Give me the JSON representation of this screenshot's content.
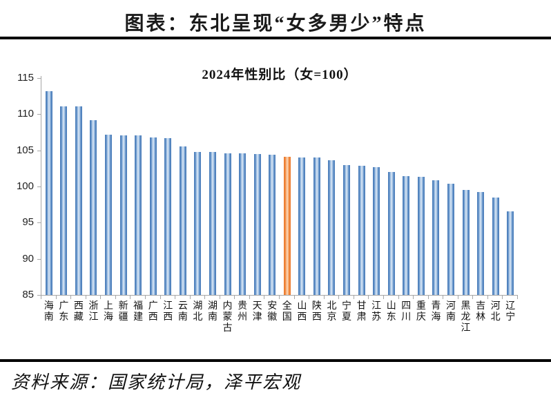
{
  "page": {
    "title": "图表：东北呈现“女多男少”特点",
    "source": "资料来源：国家统计局，泽平宏观"
  },
  "chart_data": {
    "type": "bar",
    "title": "2024年性别比（女=100）",
    "categories": [
      "海南",
      "广东",
      "西藏",
      "浙江",
      "上海",
      "新疆",
      "福建",
      "广西",
      "江西",
      "云南",
      "湖北",
      "湖南",
      "内蒙古",
      "贵州",
      "天津",
      "安徽",
      "全国",
      "山西",
      "陕西",
      "北京",
      "宁夏",
      "甘肃",
      "江苏",
      "山东",
      "四川",
      "重庆",
      "青海",
      "河南",
      "黑龙江",
      "吉林",
      "河北",
      "辽宁"
    ],
    "values": [
      113.2,
      111.1,
      111.1,
      109.2,
      107.2,
      107.1,
      107.1,
      106.8,
      106.7,
      105.5,
      104.8,
      104.8,
      104.6,
      104.6,
      104.5,
      104.4,
      104.1,
      104.0,
      104.0,
      103.6,
      103.0,
      102.9,
      102.7,
      102.0,
      101.4,
      101.3,
      100.9,
      100.4,
      99.5,
      99.2,
      98.5,
      96.6
    ],
    "highlight_category": "全国",
    "highlight_index": 16,
    "ylim": [
      85,
      115
    ],
    "yticks": [
      85,
      90,
      95,
      100,
      105,
      110,
      115
    ],
    "grid": false,
    "legend": "none",
    "bar_color": "#4f81bd",
    "bar_color_light": "#d3e2f2",
    "bar_color_mid": "#93b7de",
    "highlight_color": "#ed7d31",
    "highlight_color_light": "#fbd3b2",
    "highlight_color_mid": "#f4a468",
    "axis_color": "#a6a6a6"
  }
}
